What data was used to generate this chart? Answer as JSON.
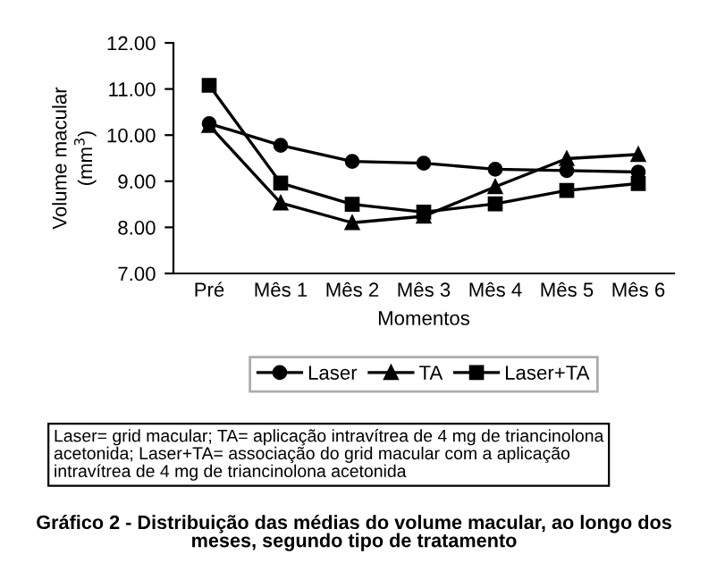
{
  "chart_data": {
    "type": "line",
    "title": "Gráfico 2 - Distribuição das médias do volume macular, ao longo dos\nmeses, segundo tipo de tratamento",
    "xlabel": "Momentos",
    "ylabel": "Volume macular\n(mm$^{3}$)",
    "categories": [
      "Pré",
      "Mês 1",
      "Mês 2",
      "Mês 3",
      "Mês 4",
      "Mês 5",
      "Mês 6"
    ],
    "series": [
      {
        "name": "Laser",
        "color": "#000000",
        "marker": "circle",
        "values": [
          10.25,
          9.78,
          9.43,
          9.39,
          9.26,
          9.23,
          9.2
        ]
      },
      {
        "name": "TA",
        "color": "#000000",
        "marker": "triangle",
        "values": [
          10.21,
          8.53,
          8.1,
          8.24,
          8.88,
          9.49,
          9.58
        ]
      },
      {
        "name": "Laser+TA",
        "color": "#000000",
        "marker": "square",
        "values": [
          11.08,
          8.96,
          8.5,
          8.33,
          8.51,
          8.8,
          8.95
        ]
      }
    ],
    "ylim": [
      7,
      12
    ],
    "yticks": [
      {
        "value": 7,
        "label": "7.00"
      },
      {
        "value": 8,
        "label": "8.00"
      },
      {
        "value": 9,
        "label": "9.00"
      },
      {
        "value": 10,
        "label": "10.00"
      },
      {
        "value": 11,
        "label": "11.00"
      },
      {
        "value": 12,
        "label": "12.00"
      }
    ],
    "grid": false,
    "legend": "bottom",
    "line_style": "solid",
    "annotations": [
      "Laser= grid macular; TA= aplicação intravítrea de 4 mg de triancinolona\nacetonida; Laser+TA= associação do grid macular com a aplicação\nintravítrea de 4 mg de triancinolona acetonida"
    ]
  }
}
